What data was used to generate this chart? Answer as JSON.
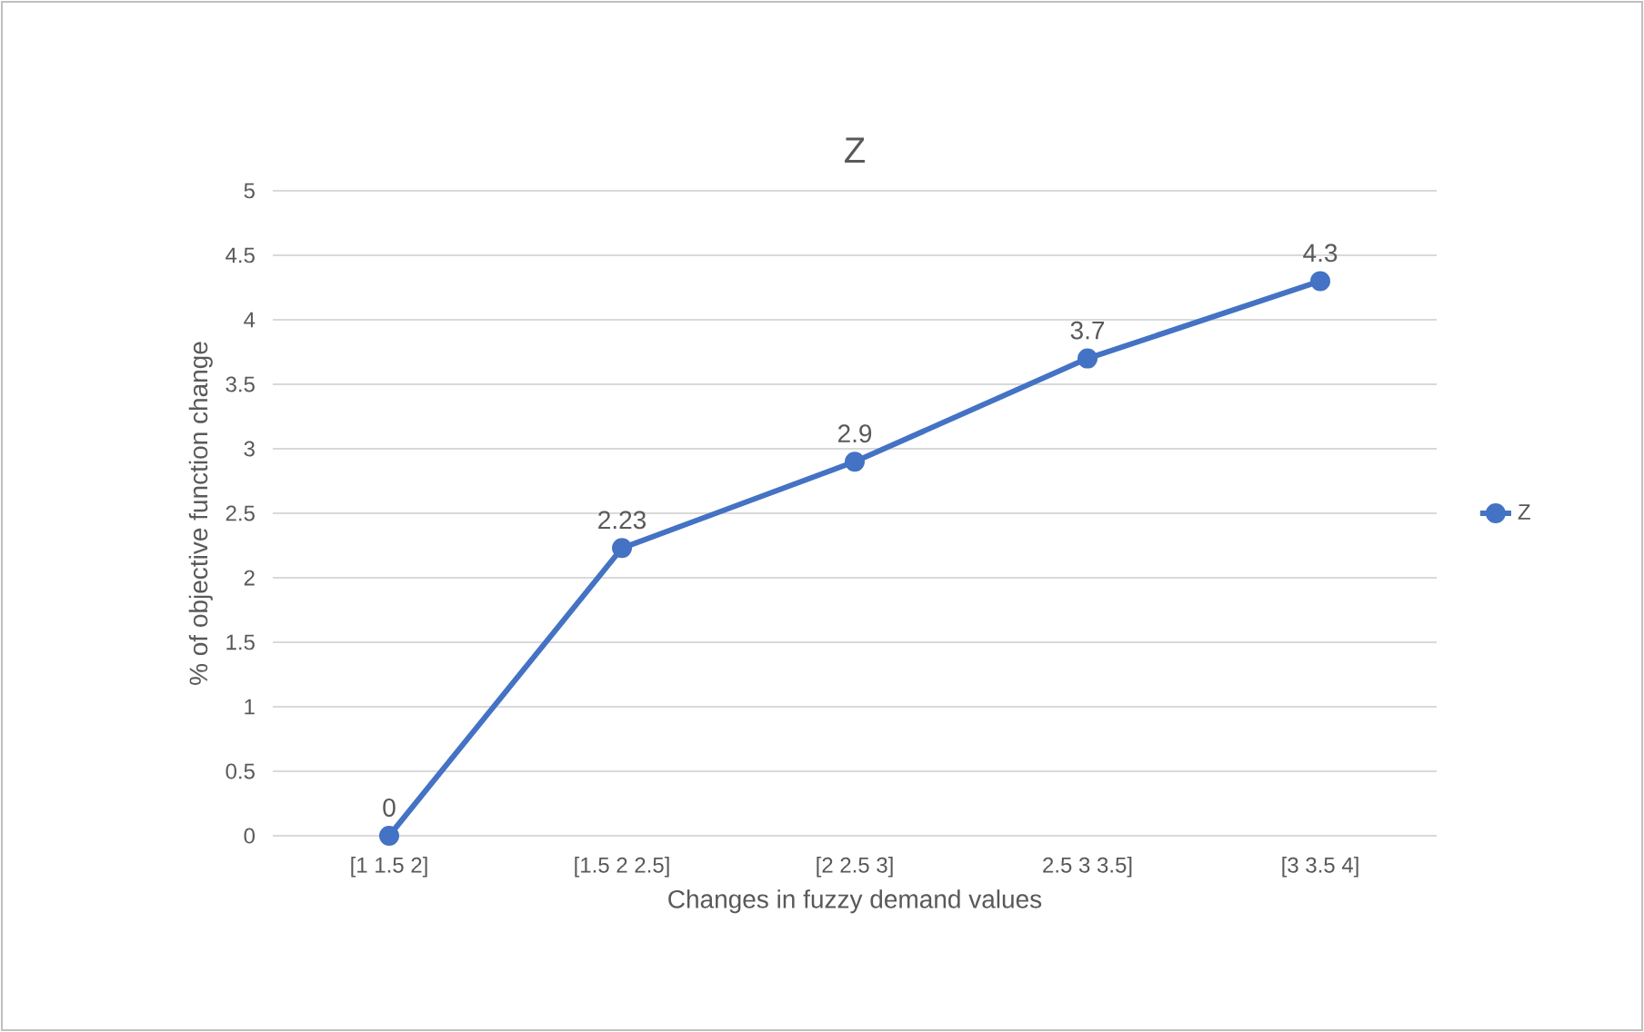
{
  "chart_data": {
    "type": "line",
    "title": "Z",
    "xlabel": "Changes in fuzzy demand values",
    "ylabel": "% of objective function change",
    "categories": [
      "[1 1.5 2]",
      "[1.5 2 2.5]",
      "[2 2.5 3]",
      "2.5 3 3.5]",
      "[3 3.5 4]"
    ],
    "series": [
      {
        "name": "Z",
        "color": "#4472c4",
        "values": [
          0,
          2.23,
          2.9,
          3.7,
          4.3
        ]
      }
    ],
    "ylim": [
      0,
      5
    ],
    "yticks": [
      0,
      0.5,
      1,
      1.5,
      2,
      2.5,
      3,
      3.5,
      4,
      4.5,
      5
    ],
    "grid": "y",
    "legend": "right",
    "marker": "circle",
    "line_style": "solid",
    "data_labels": true
  }
}
